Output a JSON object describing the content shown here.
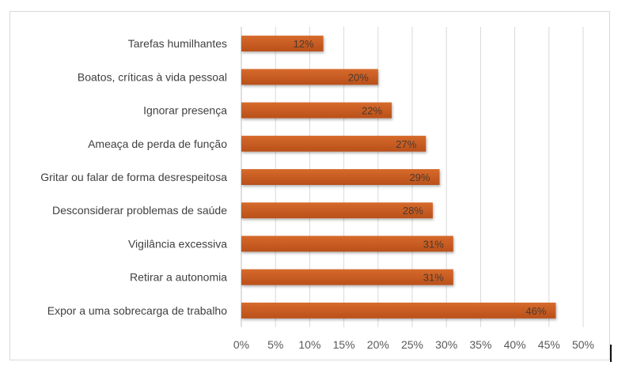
{
  "chart_data": {
    "type": "bar",
    "orientation": "horizontal",
    "categories": [
      "Tarefas humilhantes",
      "Boatos, críticas à vida pessoal",
      "Ignorar presença",
      "Ameaça de perda de função",
      "Gritar ou falar de forma desrespeitosa",
      "Desconsiderar problemas de saúde",
      "Vigilância excessiva",
      "Retirar a autonomia",
      "Expor a uma sobrecarga de trabalho"
    ],
    "values": [
      12,
      20,
      22,
      27,
      29,
      28,
      31,
      31,
      46
    ],
    "data_labels": [
      "12%",
      "20%",
      "22%",
      "27%",
      "29%",
      "28%",
      "31%",
      "31%",
      "46%"
    ],
    "xlim": [
      0,
      50
    ],
    "x_ticks": [
      "0%",
      "5%",
      "10%",
      "15%",
      "20%",
      "25%",
      "30%",
      "35%",
      "40%",
      "45%",
      "50%"
    ],
    "grid": "vertical",
    "bar_color": "#c55a1e",
    "title": "",
    "xlabel": "",
    "ylabel": ""
  }
}
